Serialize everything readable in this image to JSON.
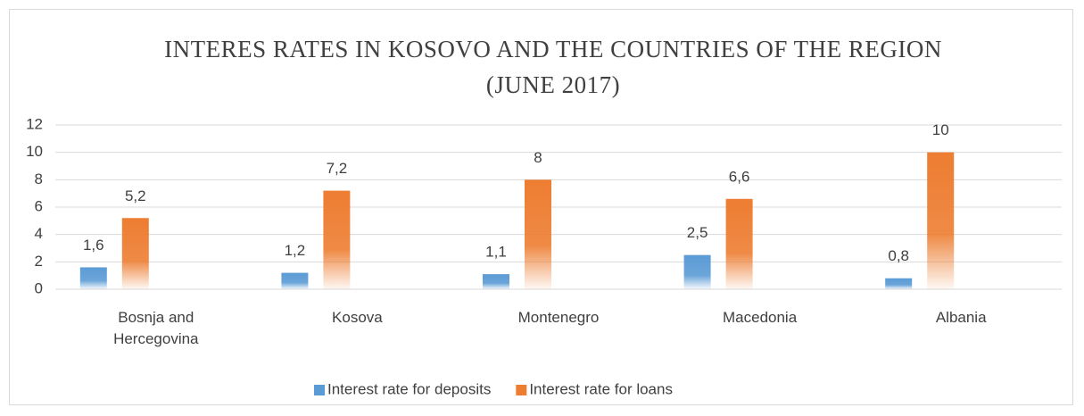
{
  "chart_data": {
    "type": "bar",
    "title": "INTERES RATES IN KOSOVO AND THE COUNTRIES OF THE REGION (JUNE 2017)",
    "categories": [
      "Bosnja and Hercegovina",
      "Kosova",
      "Montenegro",
      "Macedonia",
      "Albania"
    ],
    "series": [
      {
        "name": "Interest rate for deposits",
        "color": "#5b9bd5",
        "values": [
          1.6,
          1.2,
          1.1,
          2.5,
          0.8
        ],
        "value_labels": [
          "1,6",
          "1,2",
          "1,1",
          "2,5",
          "0,8"
        ]
      },
      {
        "name": "Interest rate for loans",
        "color": "#ed7d31",
        "values": [
          5.2,
          7.2,
          8,
          6.6,
          10
        ],
        "value_labels": [
          "5,2",
          "7,2",
          "8",
          "6,6",
          "10"
        ]
      }
    ],
    "ylim": [
      0,
      12
    ],
    "yticks": [
      0,
      2,
      4,
      6,
      8,
      10,
      12
    ],
    "grid": true,
    "legend": "bottom"
  }
}
